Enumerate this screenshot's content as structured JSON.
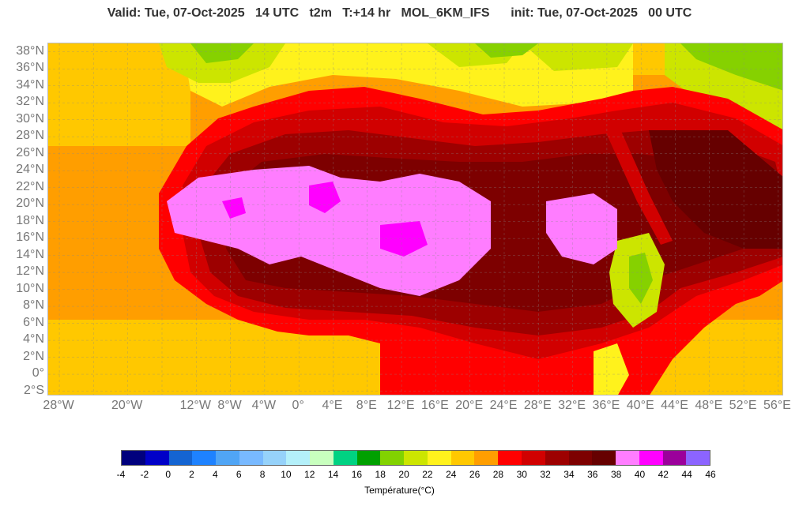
{
  "header": {
    "title": "Valid: Tue, 07-Oct-2025   14 UTC   t2m   T:+14 hr   MOL_6KM_IFS      init: Tue, 07-Oct-2025   00 UTC"
  },
  "map": {
    "lat_labels": [
      "38°N",
      "36°N",
      "34°N",
      "32°N",
      "30°N",
      "28°N",
      "26°N",
      "24°N",
      "22°N",
      "20°N",
      "18°N",
      "16°N",
      "14°N",
      "12°N",
      "10°N",
      "8°N",
      "6°N",
      "4°N",
      "2°N",
      "0°",
      "2°S"
    ],
    "lon_labels": [
      "28°W",
      "20°W",
      "12°W",
      "8°W",
      "4°W",
      "0°",
      "4°E",
      "8°E",
      "12°E",
      "16°E",
      "20°E",
      "24°E",
      "28°E",
      "32°E",
      "36°E",
      "40°E",
      "44°E",
      "48°E",
      "52°E",
      "56°E"
    ],
    "lat_values": [
      38,
      36,
      34,
      32,
      30,
      28,
      26,
      24,
      22,
      20,
      18,
      16,
      14,
      12,
      10,
      8,
      6,
      4,
      2,
      0,
      -2
    ],
    "lon_values": [
      -28,
      -20,
      -12,
      -8,
      -4,
      0,
      4,
      8,
      12,
      16,
      20,
      24,
      28,
      32,
      36,
      40,
      44,
      48,
      52,
      56
    ],
    "colors": {
      "sea_orange": "#ff9e00",
      "sea_amber": "#ffc800",
      "yellow": "#fff21c",
      "yellowgreen": "#cce500",
      "green": "#86d100",
      "red": "#ff0000",
      "darkred1": "#d10000",
      "darkred2": "#9d0000",
      "darkred3": "#7d0000",
      "darkred4": "#660000",
      "pink": "#ff7dff",
      "magenta": "#ff00ff"
    }
  },
  "colorbar": {
    "label": "Température(°C)",
    "ticks": [
      "-4",
      "-2",
      "0",
      "2",
      "4",
      "6",
      "8",
      "10",
      "12",
      "14",
      "16",
      "18",
      "20",
      "22",
      "24",
      "26",
      "28",
      "30",
      "32",
      "34",
      "36",
      "38",
      "40",
      "42",
      "44",
      "46"
    ],
    "colors": [
      "#00007d",
      "#0000c8",
      "#1464d2",
      "#1e82ff",
      "#50a5f5",
      "#78b9ff",
      "#96d2fa",
      "#b4f0fa",
      "#c8ffbe",
      "#00d282",
      "#00a000",
      "#82d200",
      "#cce500",
      "#fff21c",
      "#ffc800",
      "#ff9e00",
      "#ff0000",
      "#d10000",
      "#9d0000",
      "#7d0000",
      "#660000",
      "#ff7dff",
      "#ff00ff",
      "#9b009b",
      "#8c64ff"
    ]
  }
}
